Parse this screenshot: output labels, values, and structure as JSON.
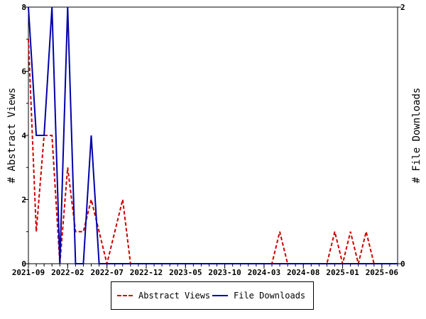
{
  "chart_data": {
    "type": "line",
    "x_tick_labels": [
      "2021-09",
      "2022-02",
      "2022-07",
      "2022-12",
      "2023-05",
      "2023-10",
      "2024-03",
      "2024-08",
      "2025-01",
      "2025-06"
    ],
    "x_range": [
      "2021-09",
      "2025-08"
    ],
    "ylabel_left": "# Abstract Views",
    "ylabel_right": "# File Downloads",
    "ylim_left": [
      0,
      8
    ],
    "ylim_right": [
      0,
      2
    ],
    "y_ticks_left": [
      "0",
      "2",
      "4",
      "6",
      "8"
    ],
    "y_ticks_right": [
      "0",
      "2"
    ],
    "grid": false,
    "legend_position": "bottom",
    "series": [
      {
        "name": "Abstract Views",
        "axis": "left",
        "color": "#cc0000",
        "style": "dashed",
        "points": [
          [
            "2021-09",
            7
          ],
          [
            "2021-10",
            1
          ],
          [
            "2021-11",
            4
          ],
          [
            "2021-12",
            4
          ],
          [
            "2022-01",
            0
          ],
          [
            "2022-02",
            3
          ],
          [
            "2022-03",
            1
          ],
          [
            "2022-04",
            1
          ],
          [
            "2022-05",
            2
          ],
          [
            "2022-06",
            1
          ],
          [
            "2022-07",
            0
          ],
          [
            "2022-08",
            1
          ],
          [
            "2022-09",
            2
          ],
          [
            "2022-10",
            0
          ],
          [
            "2022-11",
            0
          ],
          [
            "2024-04",
            0
          ],
          [
            "2024-05",
            1
          ],
          [
            "2024-06",
            0
          ],
          [
            "2024-11",
            0
          ],
          [
            "2024-12",
            1
          ],
          [
            "2025-01",
            0
          ],
          [
            "2025-02",
            1
          ],
          [
            "2025-03",
            0
          ],
          [
            "2025-04",
            1
          ],
          [
            "2025-05",
            0
          ],
          [
            "2025-08",
            0
          ]
        ]
      },
      {
        "name": "File Downloads",
        "axis": "right",
        "color": "#0000aa",
        "style": "solid",
        "points": [
          [
            "2021-09",
            2
          ],
          [
            "2021-10",
            1
          ],
          [
            "2021-11",
            1
          ],
          [
            "2021-12",
            2
          ],
          [
            "2022-01",
            0
          ],
          [
            "2022-02",
            2
          ],
          [
            "2022-03",
            0
          ],
          [
            "2022-04",
            0
          ],
          [
            "2022-05",
            1
          ],
          [
            "2022-06",
            0
          ],
          [
            "2025-08",
            0
          ]
        ]
      }
    ]
  }
}
